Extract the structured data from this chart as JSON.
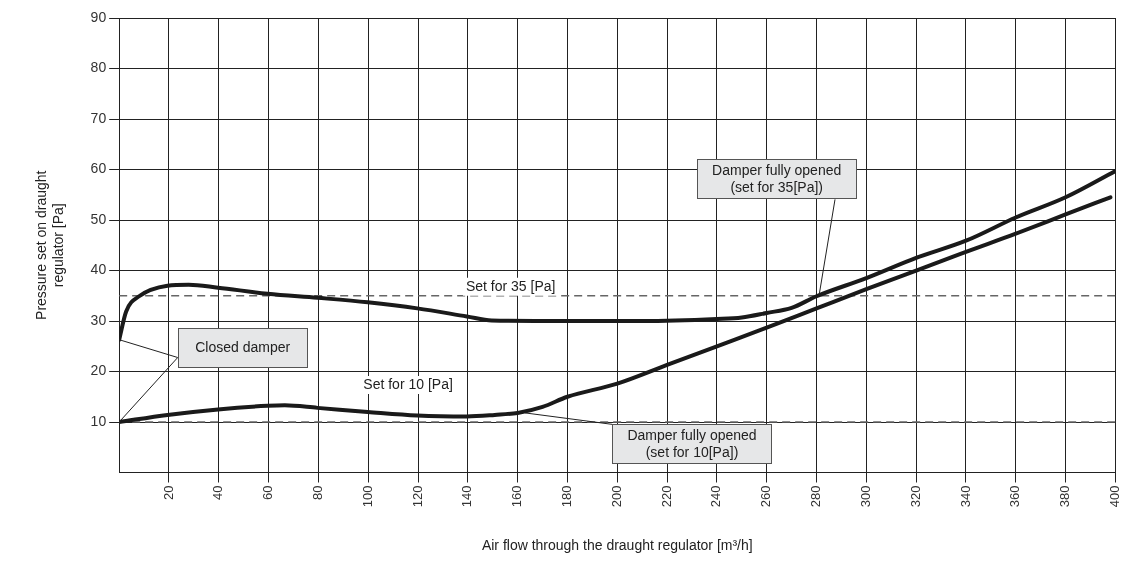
{
  "chart_data": {
    "type": "line",
    "xlabel": "Air flow through the draught regulator [m³/h]",
    "ylabel": "Pressure set on draught regulator [Pa]",
    "xlim": [
      0,
      400
    ],
    "xticks": [
      20,
      40,
      60,
      80,
      100,
      120,
      140,
      160,
      180,
      200,
      220,
      240,
      260,
      280,
      300,
      320,
      340,
      360,
      380,
      400
    ],
    "ylim": [
      0,
      90
    ],
    "yticks": [
      10,
      20,
      30,
      40,
      50,
      60,
      70,
      80,
      90
    ],
    "grid": true,
    "legend": false,
    "marker": "none",
    "line_style": "solid",
    "series": [
      {
        "color": "#1a1a1a",
        "x": [
          0,
          2.8,
          8,
          19.4,
          27.9,
          39.7,
          59.6,
          79.6,
          99.8,
          119.7,
          139.6,
          149.6,
          180,
          210,
          240,
          250,
          260,
          270,
          280,
          300,
          320,
          340,
          360,
          380,
          400
        ],
        "values": [
          26.3,
          31.9,
          34.9,
          37,
          37.2,
          36.6,
          35.4,
          34.6,
          33.7,
          32.5,
          30.9,
          30.1,
          30,
          30,
          30.4,
          30.7,
          31.6,
          32.6,
          34.9,
          38.5,
          42.5,
          45.9,
          50.5,
          54.5,
          59.7
        ]
      },
      {
        "color": "#1a1a1a",
        "x": [
          0,
          19.4,
          39.7,
          59.6,
          66.5,
          79.6,
          99.8,
          119.7,
          139.6,
          150.8,
          160,
          170,
          180,
          200,
          220,
          240,
          260,
          280,
          300,
          320,
          340,
          360,
          380,
          398
        ],
        "values": [
          10,
          11.4,
          12.5,
          13.2,
          13.3,
          12.8,
          12,
          11.3,
          11.1,
          11.4,
          11.8,
          13,
          15,
          17.6,
          21.3,
          25,
          28.7,
          32.5,
          36.3,
          40,
          43.7,
          47.3,
          51.1,
          54.5
        ]
      }
    ],
    "ref_lines": [
      {
        "axis": "y",
        "value": 35,
        "label": "Set for 35 [Pa]",
        "color": "#666666",
        "line_style": "dashed"
      },
      {
        "axis": "y",
        "value": 10,
        "label": "Set for 10 [Pa]",
        "color": "#666666",
        "line_style": "dashed"
      }
    ],
    "annotations": [
      {
        "text": "Closed damper",
        "x": 0,
        "y": 26.3
      },
      {
        "text": "Damper fully opened\n(set for 35[Pa])",
        "x": 281,
        "y": 35
      },
      {
        "text": "Damper fully opened\n(set for 10[Pa])",
        "x": 163,
        "y": 11.8
      }
    ]
  }
}
